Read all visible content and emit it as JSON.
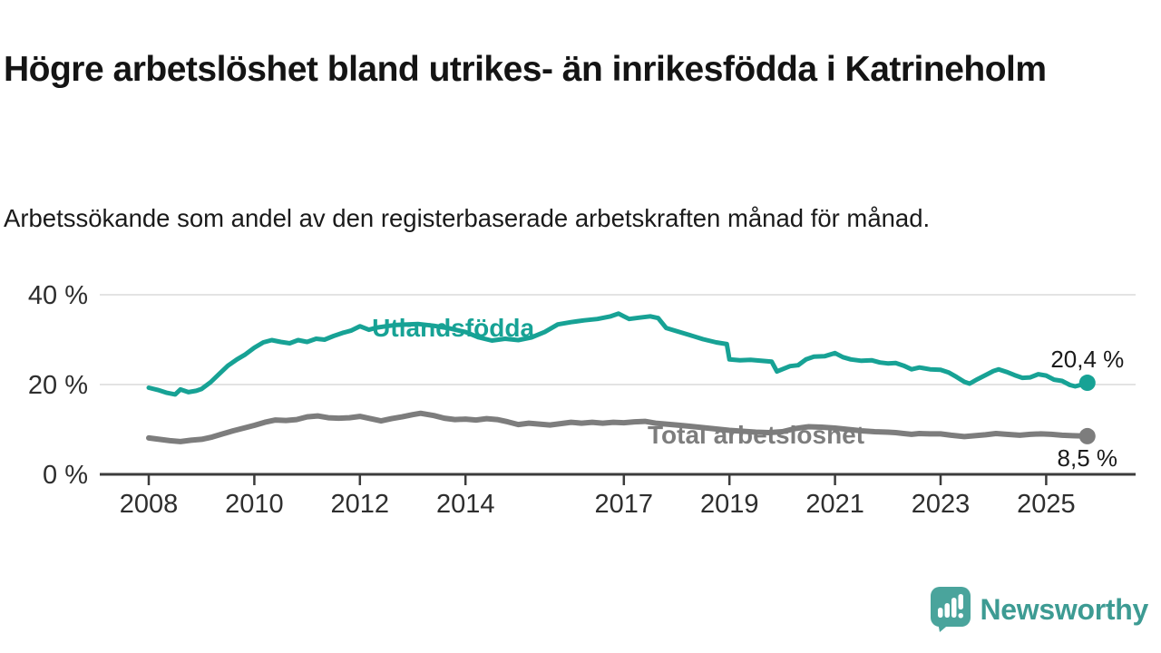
{
  "header": {
    "title": "Högre arbetslöshet bland utrikes- än inrikesfödda i Katrineholm",
    "subtitle": "Arbetssökande som andel av den registerbaserade arbetskraften månad för månad."
  },
  "footer": {
    "logo_text": "Newsworthy",
    "logo_color": "#3d9b93",
    "logo_icon": "speech-bubble-bar-chart-exclamation"
  },
  "colors": {
    "foreign_born_line": "#17a295",
    "total_line": "#7d7d7d",
    "gridline": "#dadada",
    "axis": "#3c3c3c",
    "axis_text": "#2e2e2e",
    "value_label_text": "#1a1a1a"
  },
  "chart_data": {
    "type": "line",
    "unit": "%",
    "grid": "horizontal-only",
    "x_axis": {
      "range": [
        2007.2,
        2026.6
      ],
      "ticks": [
        {
          "v": 2008,
          "label": "2008"
        },
        {
          "v": 2010,
          "label": "2010"
        },
        {
          "v": 2012,
          "label": "2012"
        },
        {
          "v": 2014,
          "label": "2014"
        },
        {
          "v": 2017,
          "label": "2017"
        },
        {
          "v": 2019,
          "label": "2019"
        },
        {
          "v": 2021,
          "label": "2021"
        },
        {
          "v": 2023,
          "label": "2023"
        },
        {
          "v": 2025,
          "label": "2025"
        }
      ]
    },
    "y_axis": {
      "range": [
        0,
        40
      ],
      "ticks": [
        {
          "v": 0,
          "label": "0 %"
        },
        {
          "v": 20,
          "label": "20 %"
        },
        {
          "v": 40,
          "label": "40 %"
        }
      ]
    },
    "series": [
      {
        "name": "Utlandsfödda",
        "color": "#17a295",
        "line_width": 5,
        "end_label": "20,4 %",
        "end_value": 20.4,
        "end_label_position": "above",
        "label_pos": {
          "year": 2012.23,
          "value": 30.7
        },
        "points": [
          [
            2008.0,
            19.3
          ],
          [
            2008.17,
            18.8
          ],
          [
            2008.33,
            18.2
          ],
          [
            2008.5,
            17.8
          ],
          [
            2008.6,
            18.9
          ],
          [
            2008.75,
            18.3
          ],
          [
            2008.9,
            18.6
          ],
          [
            2009.0,
            19.0
          ],
          [
            2009.17,
            20.5
          ],
          [
            2009.33,
            22.3
          ],
          [
            2009.5,
            24.2
          ],
          [
            2009.67,
            25.6
          ],
          [
            2009.83,
            26.7
          ],
          [
            2010.0,
            28.2
          ],
          [
            2010.17,
            29.4
          ],
          [
            2010.33,
            29.9
          ],
          [
            2010.5,
            29.5
          ],
          [
            2010.67,
            29.2
          ],
          [
            2010.83,
            29.9
          ],
          [
            2011.0,
            29.5
          ],
          [
            2011.17,
            30.2
          ],
          [
            2011.33,
            30.0
          ],
          [
            2011.5,
            30.8
          ],
          [
            2011.67,
            31.5
          ],
          [
            2011.83,
            32.0
          ],
          [
            2012.0,
            33.0
          ],
          [
            2012.17,
            32.2
          ],
          [
            2012.33,
            32.7
          ],
          [
            2012.5,
            33.0
          ],
          [
            2012.7,
            33.3
          ],
          [
            2012.9,
            33.4
          ],
          [
            2013.1,
            33.5
          ],
          [
            2013.4,
            33.1
          ],
          [
            2013.7,
            32.5
          ],
          [
            2014.0,
            31.7
          ],
          [
            2014.25,
            30.5
          ],
          [
            2014.5,
            29.8
          ],
          [
            2014.75,
            30.2
          ],
          [
            2015.0,
            29.9
          ],
          [
            2015.25,
            30.5
          ],
          [
            2015.5,
            31.7
          ],
          [
            2015.75,
            33.4
          ],
          [
            2016.0,
            33.9
          ],
          [
            2016.25,
            34.3
          ],
          [
            2016.5,
            34.6
          ],
          [
            2016.75,
            35.2
          ],
          [
            2016.9,
            35.8
          ],
          [
            2017.0,
            35.2
          ],
          [
            2017.1,
            34.6
          ],
          [
            2017.3,
            34.9
          ],
          [
            2017.5,
            35.2
          ],
          [
            2017.65,
            34.8
          ],
          [
            2017.8,
            32.6
          ],
          [
            2018.0,
            31.9
          ],
          [
            2018.25,
            31.0
          ],
          [
            2018.5,
            30.1
          ],
          [
            2018.75,
            29.4
          ],
          [
            2018.95,
            29.0
          ],
          [
            2019.0,
            25.6
          ],
          [
            2019.2,
            25.4
          ],
          [
            2019.4,
            25.5
          ],
          [
            2019.6,
            25.3
          ],
          [
            2019.8,
            25.1
          ],
          [
            2019.9,
            22.9
          ],
          [
            2020.0,
            23.4
          ],
          [
            2020.15,
            24.1
          ],
          [
            2020.3,
            24.3
          ],
          [
            2020.45,
            25.6
          ],
          [
            2020.6,
            26.2
          ],
          [
            2020.8,
            26.3
          ],
          [
            2021.0,
            27.0
          ],
          [
            2021.15,
            26.1
          ],
          [
            2021.3,
            25.6
          ],
          [
            2021.5,
            25.3
          ],
          [
            2021.7,
            25.4
          ],
          [
            2021.85,
            24.9
          ],
          [
            2022.0,
            24.7
          ],
          [
            2022.15,
            24.8
          ],
          [
            2022.3,
            24.2
          ],
          [
            2022.45,
            23.4
          ],
          [
            2022.6,
            23.8
          ],
          [
            2022.8,
            23.4
          ],
          [
            2023.0,
            23.3
          ],
          [
            2023.15,
            22.7
          ],
          [
            2023.3,
            21.7
          ],
          [
            2023.45,
            20.6
          ],
          [
            2023.55,
            20.2
          ],
          [
            2023.7,
            21.2
          ],
          [
            2023.85,
            22.1
          ],
          [
            2024.0,
            23.0
          ],
          [
            2024.1,
            23.4
          ],
          [
            2024.25,
            22.8
          ],
          [
            2024.4,
            22.1
          ],
          [
            2024.55,
            21.5
          ],
          [
            2024.7,
            21.6
          ],
          [
            2024.85,
            22.3
          ],
          [
            2025.0,
            22.0
          ],
          [
            2025.15,
            21.1
          ],
          [
            2025.3,
            20.8
          ],
          [
            2025.45,
            19.9
          ],
          [
            2025.55,
            19.6
          ],
          [
            2025.65,
            19.9
          ],
          [
            2025.78,
            20.4
          ]
        ]
      },
      {
        "name": "Total arbetslöshet",
        "color": "#7d7d7d",
        "line_width": 6,
        "end_label": "8,5 %",
        "end_value": 8.5,
        "end_label_position": "below",
        "label_pos": {
          "year": 2017.45,
          "value": 6.9
        },
        "points": [
          [
            2008.0,
            8.1
          ],
          [
            2008.2,
            7.8
          ],
          [
            2008.4,
            7.5
          ],
          [
            2008.6,
            7.3
          ],
          [
            2008.8,
            7.6
          ],
          [
            2009.0,
            7.8
          ],
          [
            2009.2,
            8.3
          ],
          [
            2009.4,
            9.0
          ],
          [
            2009.6,
            9.7
          ],
          [
            2009.8,
            10.3
          ],
          [
            2010.0,
            10.9
          ],
          [
            2010.2,
            11.6
          ],
          [
            2010.4,
            12.1
          ],
          [
            2010.6,
            12.0
          ],
          [
            2010.8,
            12.2
          ],
          [
            2011.0,
            12.8
          ],
          [
            2011.2,
            13.0
          ],
          [
            2011.4,
            12.6
          ],
          [
            2011.6,
            12.5
          ],
          [
            2011.8,
            12.6
          ],
          [
            2012.0,
            12.9
          ],
          [
            2012.2,
            12.4
          ],
          [
            2012.4,
            11.9
          ],
          [
            2012.6,
            12.4
          ],
          [
            2012.8,
            12.8
          ],
          [
            2013.0,
            13.3
          ],
          [
            2013.15,
            13.6
          ],
          [
            2013.4,
            13.1
          ],
          [
            2013.6,
            12.5
          ],
          [
            2013.8,
            12.2
          ],
          [
            2014.0,
            12.3
          ],
          [
            2014.2,
            12.1
          ],
          [
            2014.4,
            12.4
          ],
          [
            2014.6,
            12.2
          ],
          [
            2014.8,
            11.7
          ],
          [
            2015.0,
            11.1
          ],
          [
            2015.2,
            11.4
          ],
          [
            2015.4,
            11.2
          ],
          [
            2015.6,
            11.0
          ],
          [
            2015.8,
            11.3
          ],
          [
            2016.0,
            11.6
          ],
          [
            2016.2,
            11.4
          ],
          [
            2016.4,
            11.6
          ],
          [
            2016.6,
            11.4
          ],
          [
            2016.8,
            11.6
          ],
          [
            2017.0,
            11.5
          ],
          [
            2017.2,
            11.7
          ],
          [
            2017.4,
            11.8
          ],
          [
            2017.6,
            11.4
          ],
          [
            2017.8,
            11.2
          ],
          [
            2018.0,
            11.0
          ],
          [
            2018.25,
            10.7
          ],
          [
            2018.5,
            10.4
          ],
          [
            2018.75,
            10.1
          ],
          [
            2019.0,
            9.8
          ],
          [
            2019.25,
            9.6
          ],
          [
            2019.5,
            9.4
          ],
          [
            2019.75,
            9.3
          ],
          [
            2020.0,
            9.5
          ],
          [
            2020.25,
            10.2
          ],
          [
            2020.5,
            10.6
          ],
          [
            2020.75,
            10.5
          ],
          [
            2021.0,
            10.3
          ],
          [
            2021.25,
            10.0
          ],
          [
            2021.5,
            9.7
          ],
          [
            2021.75,
            9.5
          ],
          [
            2022.0,
            9.4
          ],
          [
            2022.15,
            9.3
          ],
          [
            2022.3,
            9.1
          ],
          [
            2022.45,
            8.9
          ],
          [
            2022.6,
            9.1
          ],
          [
            2022.8,
            9.0
          ],
          [
            2023.0,
            9.0
          ],
          [
            2023.2,
            8.7
          ],
          [
            2023.45,
            8.4
          ],
          [
            2023.65,
            8.6
          ],
          [
            2023.85,
            8.8
          ],
          [
            2024.05,
            9.1
          ],
          [
            2024.25,
            8.9
          ],
          [
            2024.5,
            8.7
          ],
          [
            2024.7,
            8.9
          ],
          [
            2024.9,
            9.0
          ],
          [
            2025.1,
            8.9
          ],
          [
            2025.3,
            8.7
          ],
          [
            2025.5,
            8.6
          ],
          [
            2025.78,
            8.5
          ]
        ]
      }
    ]
  }
}
